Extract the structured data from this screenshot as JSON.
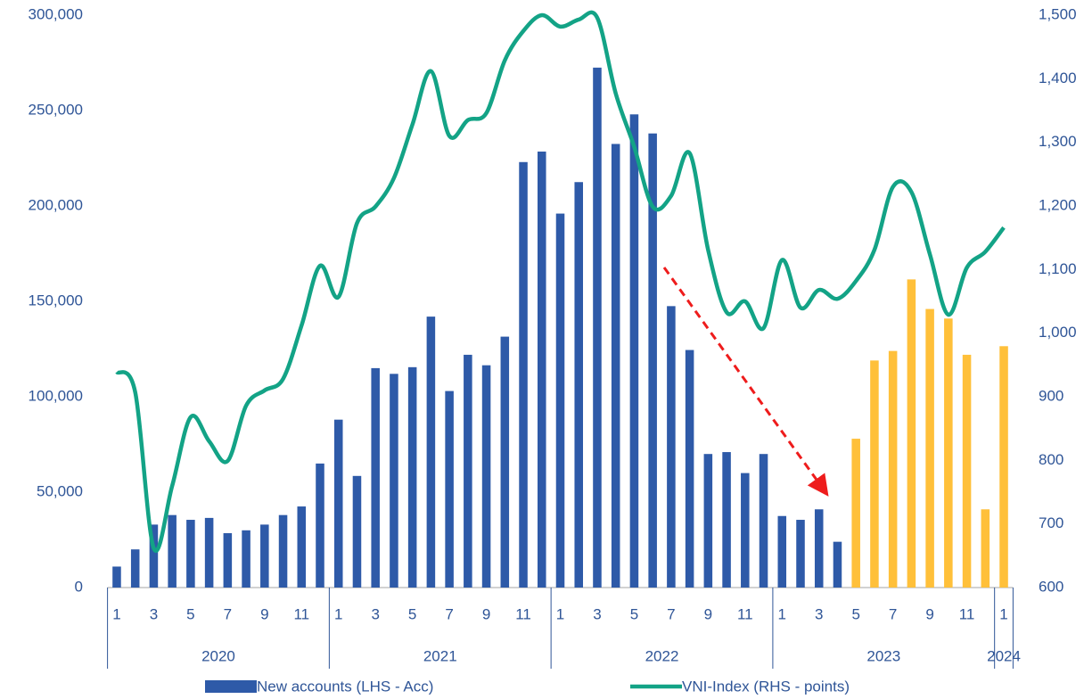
{
  "chart_data": {
    "type": "bar_line",
    "categories": [
      "1",
      null,
      "3",
      null,
      "5",
      null,
      "7",
      null,
      "9",
      null,
      "11",
      null,
      "1",
      null,
      "3",
      null,
      "5",
      null,
      "7",
      null,
      "9",
      null,
      "11",
      null,
      "1",
      null,
      "3",
      null,
      "5",
      null,
      "7",
      null,
      "9",
      null,
      "11",
      null,
      "1",
      null,
      "3",
      null,
      "5",
      null,
      "7",
      null,
      "9",
      null,
      "11",
      null,
      "1"
    ],
    "x_groups": [
      {
        "label": "2020",
        "span": 12
      },
      {
        "label": "2021",
        "span": 12
      },
      {
        "label": "2022",
        "span": 12
      },
      {
        "label": "2023",
        "span": 12
      },
      {
        "label": "2024",
        "span": 1
      }
    ],
    "series": [
      {
        "name": "New accounts (LHS - Acc)",
        "type": "bar",
        "color": "#2e5aa8",
        "colors": [
          "#2e5aa8",
          "#2e5aa8",
          "#2e5aa8",
          "#2e5aa8",
          "#2e5aa8",
          "#2e5aa8",
          "#2e5aa8",
          "#2e5aa8",
          "#2e5aa8",
          "#2e5aa8",
          "#2e5aa8",
          "#2e5aa8",
          "#2e5aa8",
          "#2e5aa8",
          "#2e5aa8",
          "#2e5aa8",
          "#2e5aa8",
          "#2e5aa8",
          "#2e5aa8",
          "#2e5aa8",
          "#2e5aa8",
          "#2e5aa8",
          "#2e5aa8",
          "#2e5aa8",
          "#2e5aa8",
          "#2e5aa8",
          "#2e5aa8",
          "#2e5aa8",
          "#2e5aa8",
          "#2e5aa8",
          "#2e5aa8",
          "#2e5aa8",
          "#2e5aa8",
          "#2e5aa8",
          "#2e5aa8",
          "#2e5aa8",
          "#2e5aa8",
          "#2e5aa8",
          "#2e5aa8",
          "#2e5aa8",
          "#ffc03a",
          "#ffc03a",
          "#ffc03a",
          "#ffc03a",
          "#ffc03a",
          "#ffc03a",
          "#ffc03a",
          "#ffc03a",
          "#ffc03a"
        ],
        "values": [
          11000,
          20000,
          33000,
          38000,
          35500,
          36500,
          28500,
          30000,
          33000,
          38000,
          42500,
          65000,
          88000,
          58500,
          115000,
          112000,
          115500,
          142000,
          103000,
          122000,
          116500,
          131500,
          223000,
          228500,
          196000,
          212500,
          272500,
          232500,
          248000,
          238000,
          147500,
          124500,
          70000,
          71000,
          60000,
          70000,
          37500,
          35500,
          41000,
          24000,
          78000,
          119000,
          124000,
          161500,
          146000,
          141000,
          122000,
          41000,
          126500
        ]
      },
      {
        "name": "VNI-Index (RHS - points)",
        "type": "line",
        "axis": "y2",
        "color": "#13a386",
        "values": [
          939,
          907,
          662,
          760,
          868,
          830,
          799,
          886,
          910,
          928,
          1012,
          1106,
          1057,
          1173,
          1199,
          1244,
          1328,
          1412,
          1310,
          1335,
          1346,
          1429,
          1475,
          1500,
          1482,
          1493,
          1496,
          1377,
          1293,
          1199,
          1216,
          1283,
          1131,
          1033,
          1050,
          1008,
          1115,
          1040,
          1068,
          1054,
          1082,
          1131,
          1230,
          1222,
          1124,
          1029,
          1103,
          1128,
          1166
        ]
      }
    ],
    "ylim": [
      0,
      300000
    ],
    "yticks": [
      0,
      {
        "value": 50000,
        "label": "50,000"
      },
      {
        "value": 100000,
        "label": "100,000"
      },
      {
        "value": 150000,
        "label": "150,000"
      },
      {
        "value": 200000,
        "label": "200,000"
      },
      {
        "value": 250000,
        "label": "250,000"
      },
      {
        "value": 300000,
        "label": "300,000"
      }
    ],
    "y2lim": [
      600,
      1500
    ],
    "y2ticks": [
      600,
      700,
      800,
      900,
      {
        "value": 1000,
        "label": "1,000"
      },
      {
        "value": 1100,
        "label": "1,100"
      },
      {
        "value": 1200,
        "label": "1,200"
      },
      {
        "value": 1300,
        "label": "1,300"
      },
      {
        "value": 1400,
        "label": "1,400"
      },
      {
        "value": 1500,
        "label": "1,500"
      }
    ],
    "grid": false,
    "legend": "bottom"
  }
}
